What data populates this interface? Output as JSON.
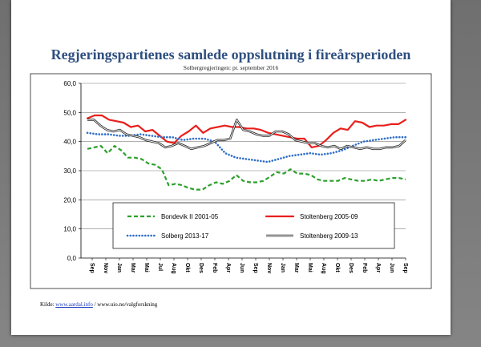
{
  "chart_data": {
    "type": "line",
    "title": "Regjeringspartienes samlede oppslutning i fireårsperioden",
    "subtitle": "Solbergregjeringen: pr. september 2016",
    "ylim": [
      0,
      60
    ],
    "y_ticks": [
      "0,0",
      "10,0",
      "20,0",
      "30,0",
      "40,0",
      "50,0",
      "60,0"
    ],
    "x_ticks": [
      "Sep",
      "Nov",
      "Jan",
      "Mar",
      "Mai",
      "Jul",
      "Aug",
      "Okt",
      "Des",
      "Feb",
      "Apr",
      "Jun",
      "Sep",
      "Nov",
      "Jan",
      "Mar",
      "Mai",
      "Aug",
      "Okt",
      "Des",
      "Feb",
      "Apr",
      "Jun",
      "Sep"
    ],
    "grid": "horizontal",
    "legend_position": "bottom",
    "series": [
      {
        "name": "Bondevik II 2001-05",
        "color": "#2ca02c",
        "style": "dashed",
        "values": [
          37.5,
          38,
          38.5,
          36,
          38.5,
          37,
          34.5,
          34.5,
          34,
          32.5,
          32,
          30.5,
          25,
          25.5,
          25,
          24,
          23.5,
          23.5,
          25,
          26,
          25.5,
          26.5,
          28.5,
          26.5,
          26,
          26,
          26.5,
          28,
          29.5,
          29,
          30.5,
          29,
          29,
          28.5,
          27,
          26.5,
          26.5,
          26.5,
          27.5,
          27,
          26.5,
          26.5,
          27,
          26.5,
          27,
          27.5,
          27.5,
          27
        ]
      },
      {
        "name": "Stoltenberg 2005-09",
        "color": "#e8201c",
        "style": "solid",
        "values": [
          48,
          49,
          49,
          47.5,
          47,
          46.5,
          45,
          45.5,
          43.5,
          44,
          42,
          40,
          39.5,
          42,
          43.5,
          45.5,
          43,
          44.5,
          45,
          45.5,
          45,
          45,
          44.5,
          44.5,
          44,
          43,
          42.5,
          42,
          41.5,
          41,
          41,
          38,
          38.5,
          40.5,
          43,
          44.5,
          44,
          47,
          46.5,
          45,
          45.5,
          45.5,
          46,
          46,
          47.5
        ]
      },
      {
        "name": "Solberg 2013-17",
        "color": "#2f6ec8",
        "style": "dotted",
        "values": [
          43,
          42.5,
          42.5,
          42,
          42,
          42.5,
          42,
          41.5,
          41.5,
          40.5,
          41,
          41,
          40,
          36,
          34.5,
          34,
          33.5,
          33,
          34,
          35,
          35.5,
          36,
          35.5,
          36,
          37,
          38.5,
          40,
          40.5,
          41,
          41.5,
          41.5
        ]
      },
      {
        "name": "Stoltenberg 2009-13",
        "color": "#2a2a2a",
        "style": "double",
        "values": [
          47.5,
          47.5,
          45.5,
          44,
          43.5,
          44,
          42.5,
          42,
          41.5,
          40.5,
          40,
          39.5,
          38,
          38.5,
          39.5,
          38.5,
          37.5,
          38,
          38.5,
          39.5,
          40.5,
          40.5,
          41,
          47.5,
          44,
          43.5,
          42.5,
          42,
          42,
          43.5,
          43.5,
          42.5,
          40.5,
          40,
          39.5,
          39.5,
          38.5,
          38,
          38.5,
          37.5,
          38.5,
          38,
          37.5,
          38,
          37.5,
          37.5,
          38,
          38,
          38.5,
          40.5
        ]
      }
    ]
  },
  "source": {
    "label": "Kilde: ",
    "link": "www.aardal.info",
    "rest": " / www.uio.no/valgforskning"
  }
}
